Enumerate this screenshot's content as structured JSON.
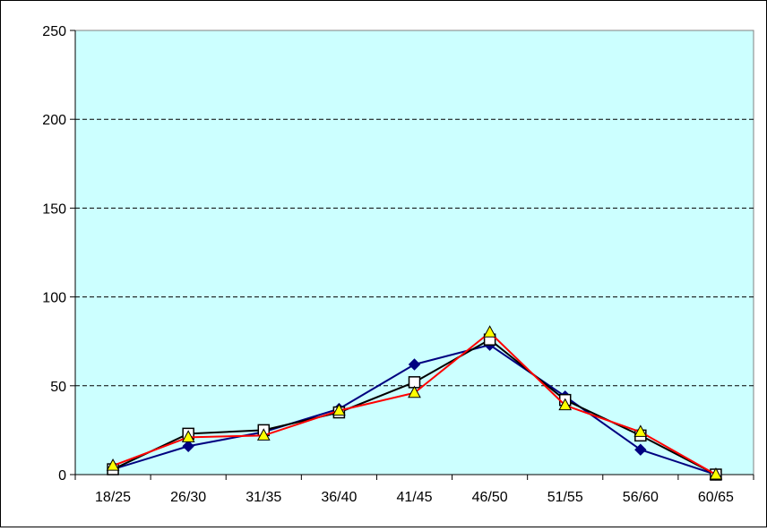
{
  "chart_data": {
    "type": "line",
    "title": "",
    "xlabel": "",
    "ylabel": "",
    "categories": [
      "18/25",
      "26/30",
      "31/35",
      "36/40",
      "41/45",
      "46/50",
      "51/55",
      "56/60",
      "60/65"
    ],
    "ylim": [
      0,
      250
    ],
    "yticks": [
      "0",
      "50",
      "100",
      "150",
      "200",
      "250"
    ],
    "grid": true,
    "plot_background": "#CCFFFF",
    "series": [
      {
        "values": [
          3,
          16,
          24,
          37,
          62,
          73,
          44,
          14,
          0
        ],
        "color": "#000080",
        "marker": "diamond",
        "marker_fill": "#000080"
      },
      {
        "values": [
          3,
          23,
          25,
          35,
          52,
          76,
          42,
          22,
          0
        ],
        "color": "#000000",
        "marker": "square",
        "marker_fill": "#FFFFFF"
      },
      {
        "values": [
          5,
          21,
          22,
          36,
          46,
          80,
          39,
          24,
          0
        ],
        "color": "#FF0000",
        "marker": "triangle",
        "marker_fill": "#FFFF00"
      }
    ]
  }
}
